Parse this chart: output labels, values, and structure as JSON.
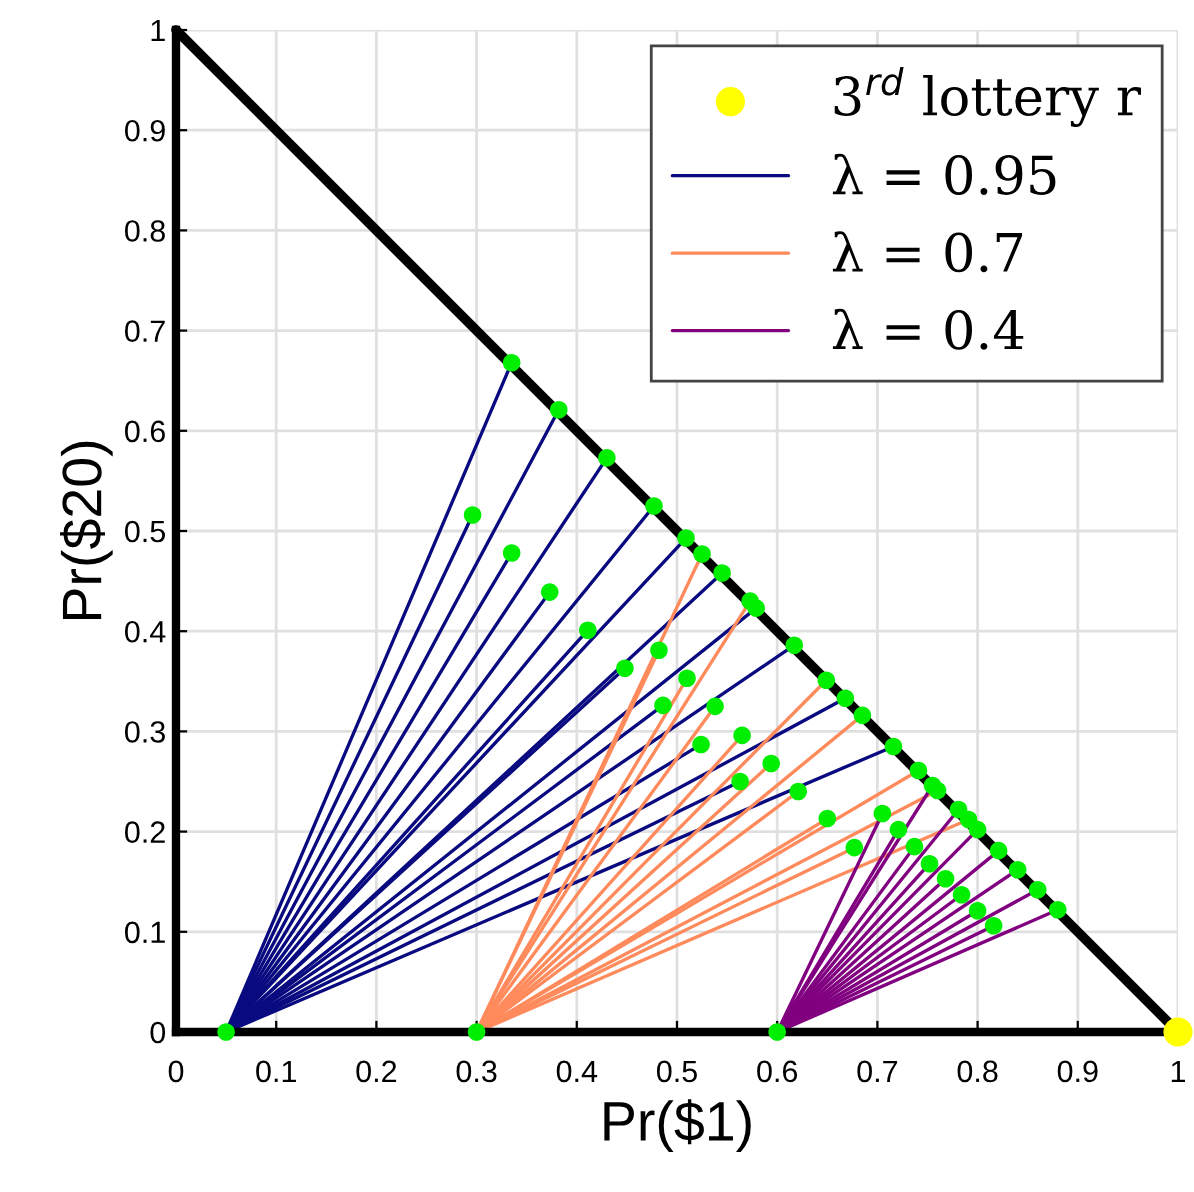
{
  "chart_data": {
    "type": "line",
    "xlabel": "Pr($1)",
    "ylabel": "Pr($20)",
    "xlim": [
      0,
      1
    ],
    "ylim": [
      0,
      1
    ],
    "xticks": [
      0,
      0.1,
      0.2,
      0.3,
      0.4,
      0.5,
      0.6,
      0.7,
      0.8,
      0.9,
      1
    ],
    "yticks": [
      0,
      0.1,
      0.2,
      0.3,
      0.4,
      0.5,
      0.6,
      0.7,
      0.8,
      0.9,
      1
    ],
    "grid": true,
    "legend": "top right",
    "series": [
      {
        "name": "λ = 0.95",
        "type": "line",
        "color": "#0a0a80",
        "x": [
          0.05,
          0.296
        ],
        "values": [
          0,
          0.516
        ]
      },
      {
        "type": "line",
        "color": "#0a0a80",
        "x": [
          0.05,
          0.335
        ],
        "values": [
          0,
          0.478
        ]
      },
      {
        "type": "line",
        "color": "#0a0a80",
        "x": [
          0.05,
          0.373
        ],
        "values": [
          0,
          0.439
        ]
      },
      {
        "type": "line",
        "color": "#0a0a80",
        "x": [
          0.05,
          0.411
        ],
        "values": [
          0,
          0.401
        ]
      },
      {
        "type": "line",
        "color": "#0a0a80",
        "x": [
          0.05,
          0.448
        ],
        "values": [
          0,
          0.363
        ]
      },
      {
        "type": "line",
        "color": "#0a0a80",
        "x": [
          0.05,
          0.486
        ],
        "values": [
          0,
          0.326
        ]
      },
      {
        "type": "line",
        "color": "#0a0a80",
        "x": [
          0.05,
          0.524
        ],
        "values": [
          0,
          0.287
        ]
      },
      {
        "type": "line",
        "color": "#0a0a80",
        "x": [
          0.05,
          0.563
        ],
        "values": [
          0,
          0.25
        ]
      },
      {
        "type": "line",
        "color": "#0a0a80",
        "x": [
          0.05,
          0.335
        ],
        "values": [
          0,
          0.668
        ]
      },
      {
        "type": "line",
        "color": "#0a0a80",
        "x": [
          0.05,
          0.382
        ],
        "values": [
          0,
          0.621
        ]
      },
      {
        "type": "line",
        "color": "#0a0a80",
        "x": [
          0.05,
          0.43
        ],
        "values": [
          0,
          0.573
        ]
      },
      {
        "type": "line",
        "color": "#0a0a80",
        "x": [
          0.05,
          0.477
        ],
        "values": [
          0,
          0.525
        ]
      },
      {
        "type": "line",
        "color": "#0a0a80",
        "x": [
          0.05,
          0.509
        ],
        "values": [
          0,
          0.493
        ]
      },
      {
        "type": "line",
        "color": "#0a0a80",
        "x": [
          0.05,
          0.545
        ],
        "values": [
          0,
          0.458
        ]
      },
      {
        "type": "line",
        "color": "#0a0a80",
        "x": [
          0.05,
          0.579
        ],
        "values": [
          0,
          0.423
        ]
      },
      {
        "type": "line",
        "color": "#0a0a80",
        "x": [
          0.05,
          0.617
        ],
        "values": [
          0,
          0.386
        ]
      },
      {
        "type": "line",
        "color": "#0a0a80",
        "x": [
          0.05,
          0.668
        ],
        "values": [
          0,
          0.333
        ]
      },
      {
        "type": "line",
        "color": "#0a0a80",
        "x": [
          0.05,
          0.716
        ],
        "values": [
          0,
          0.285
        ]
      },
      {
        "name": "λ = 0.7",
        "type": "line",
        "color": "#ff8a5c",
        "x": [
          0.3,
          0.482
        ],
        "values": [
          0,
          0.381
        ]
      },
      {
        "type": "line",
        "color": "#ff8a5c",
        "x": [
          0.3,
          0.51
        ],
        "values": [
          0,
          0.353
        ]
      },
      {
        "type": "line",
        "color": "#ff8a5c",
        "x": [
          0.3,
          0.538
        ],
        "values": [
          0,
          0.325
        ]
      },
      {
        "type": "line",
        "color": "#ff8a5c",
        "x": [
          0.3,
          0.565
        ],
        "values": [
          0,
          0.296
        ]
      },
      {
        "type": "line",
        "color": "#ff8a5c",
        "x": [
          0.3,
          0.594
        ],
        "values": [
          0,
          0.268
        ]
      },
      {
        "type": "line",
        "color": "#ff8a5c",
        "x": [
          0.3,
          0.621
        ],
        "values": [
          0,
          0.24
        ]
      },
      {
        "type": "line",
        "color": "#ff8a5c",
        "x": [
          0.3,
          0.65
        ],
        "values": [
          0,
          0.213
        ]
      },
      {
        "type": "line",
        "color": "#ff8a5c",
        "x": [
          0.3,
          0.677
        ],
        "values": [
          0,
          0.184
        ]
      },
      {
        "type": "line",
        "color": "#ff8a5c",
        "x": [
          0.3,
          0.525
        ],
        "values": [
          0,
          0.477
        ]
      },
      {
        "type": "line",
        "color": "#ff8a5c",
        "x": [
          0.3,
          0.573
        ],
        "values": [
          0,
          0.43
        ]
      },
      {
        "type": "line",
        "color": "#ff8a5c",
        "x": [
          0.3,
          0.649
        ],
        "values": [
          0,
          0.351
        ]
      },
      {
        "type": "line",
        "color": "#ff8a5c",
        "x": [
          0.3,
          0.685
        ],
        "values": [
          0,
          0.316
        ]
      },
      {
        "type": "line",
        "color": "#ff8a5c",
        "x": [
          0.3,
          0.741
        ],
        "values": [
          0,
          0.261
        ]
      },
      {
        "type": "line",
        "color": "#ff8a5c",
        "x": [
          0.3,
          0.76
        ],
        "values": [
          0,
          0.241
        ]
      },
      {
        "type": "line",
        "color": "#ff8a5c",
        "x": [
          0.3,
          0.791
        ],
        "values": [
          0,
          0.212
        ]
      },
      {
        "name": "λ = 0.4",
        "type": "line",
        "color": "#800080",
        "x": [
          0.6,
          0.705
        ],
        "values": [
          0,
          0.218
        ]
      },
      {
        "type": "line",
        "color": "#800080",
        "x": [
          0.6,
          0.721
        ],
        "values": [
          0,
          0.202
        ]
      },
      {
        "type": "line",
        "color": "#800080",
        "x": [
          0.6,
          0.737
        ],
        "values": [
          0,
          0.185
        ]
      },
      {
        "type": "line",
        "color": "#800080",
        "x": [
          0.6,
          0.752
        ],
        "values": [
          0,
          0.168
        ]
      },
      {
        "type": "line",
        "color": "#800080",
        "x": [
          0.6,
          0.768
        ],
        "values": [
          0,
          0.153
        ]
      },
      {
        "type": "line",
        "color": "#800080",
        "x": [
          0.6,
          0.784
        ],
        "values": [
          0,
          0.137
        ]
      },
      {
        "type": "line",
        "color": "#800080",
        "x": [
          0.6,
          0.8
        ],
        "values": [
          0,
          0.121
        ]
      },
      {
        "type": "line",
        "color": "#800080",
        "x": [
          0.6,
          0.816
        ],
        "values": [
          0,
          0.106
        ]
      },
      {
        "type": "line",
        "color": "#800080",
        "x": [
          0.6,
          0.755
        ],
        "values": [
          0,
          0.246
        ]
      },
      {
        "type": "line",
        "color": "#800080",
        "x": [
          0.6,
          0.781
        ],
        "values": [
          0,
          0.222
        ]
      },
      {
        "type": "line",
        "color": "#800080",
        "x": [
          0.6,
          0.8
        ],
        "values": [
          0,
          0.202
        ]
      },
      {
        "type": "line",
        "color": "#800080",
        "x": [
          0.6,
          0.821
        ],
        "values": [
          0,
          0.181
        ]
      },
      {
        "type": "line",
        "color": "#800080",
        "x": [
          0.6,
          0.84
        ],
        "values": [
          0,
          0.162
        ]
      },
      {
        "type": "line",
        "color": "#800080",
        "x": [
          0.6,
          0.86
        ],
        "values": [
          0,
          0.142
        ]
      },
      {
        "type": "line",
        "color": "#800080",
        "x": [
          0.6,
          0.88
        ],
        "values": [
          0,
          0.122
        ]
      },
      {
        "color": "#000000",
        "x": [
          0,
          1
        ],
        "values": [
          1,
          0
        ]
      },
      {
        "type": "scatter",
        "color": "#00ee00",
        "marker": "circle",
        "x": [
          0.05,
          0.3,
          0.6,
          0.296,
          0.335,
          0.373,
          0.411,
          0.448,
          0.486,
          0.524,
          0.563,
          0.335,
          0.382,
          0.43,
          0.477,
          0.509,
          0.545,
          0.579,
          0.617,
          0.668,
          0.716,
          0.482,
          0.51,
          0.538,
          0.565,
          0.594,
          0.621,
          0.65,
          0.677,
          0.525,
          0.573,
          0.649,
          0.685,
          0.741,
          0.76,
          0.791,
          0.705,
          0.721,
          0.737,
          0.752,
          0.768,
          0.784,
          0.8,
          0.816,
          0.755,
          0.781,
          0.8,
          0.821,
          0.84,
          0.86,
          0.88
        ],
        "values": [
          0,
          0,
          0,
          0.516,
          0.478,
          0.439,
          0.401,
          0.363,
          0.326,
          0.287,
          0.25,
          0.668,
          0.621,
          0.573,
          0.525,
          0.493,
          0.458,
          0.423,
          0.386,
          0.333,
          0.285,
          0.381,
          0.353,
          0.325,
          0.296,
          0.268,
          0.24,
          0.213,
          0.184,
          0.477,
          0.43,
          0.351,
          0.316,
          0.261,
          0.241,
          0.212,
          0.218,
          0.202,
          0.185,
          0.168,
          0.153,
          0.137,
          0.121,
          0.106,
          0.246,
          0.222,
          0.202,
          0.181,
          0.162,
          0.142,
          0.122
        ]
      },
      {
        "name": "3$^{rd}$ lottery r",
        "type": "scatter",
        "color": "#ffff00",
        "marker": "circle",
        "x": [
          1
        ],
        "values": [
          0
        ]
      }
    ]
  }
}
